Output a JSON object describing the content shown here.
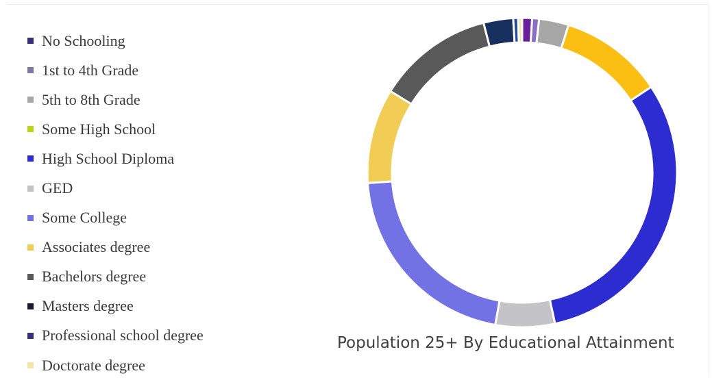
{
  "chart_data": {
    "type": "pie",
    "variant": "donut",
    "title": "Population 25+ By Educational Attainment",
    "legend_position": "left",
    "categories": [
      "No Schooling",
      "1st to 4th Grade",
      "5th to 8th Grade",
      "Some High School",
      "High School Diploma",
      "GED",
      "Some College",
      "Associates degree",
      "Bachelors degree",
      "Masters degree",
      "Professional school degree",
      "Doctorate degree"
    ],
    "values": [
      1.0,
      0.7,
      3.0,
      10.5,
      30.0,
      6.0,
      20.5,
      9.6,
      11.8,
      3.0,
      0.5,
      0.4
    ],
    "colors": [
      "#6a1f9a",
      "#8a6fc4",
      "#a6a6a6",
      "#fbbf13",
      "#2c2cd0",
      "#c4c4c8",
      "#7272e4",
      "#f2cd55",
      "#595959",
      "#17305e",
      "#22499e",
      "#f3e6a4"
    ],
    "legend_marker_colors": [
      "#34307a",
      "#7c79a8",
      "#a6a6a6",
      "#bcd418",
      "#2c2cd0",
      "#c4c4c8",
      "#7272e4",
      "#f2cd55",
      "#595959",
      "#1a1a2e",
      "#34307a",
      "#f3e6a4"
    ]
  }
}
